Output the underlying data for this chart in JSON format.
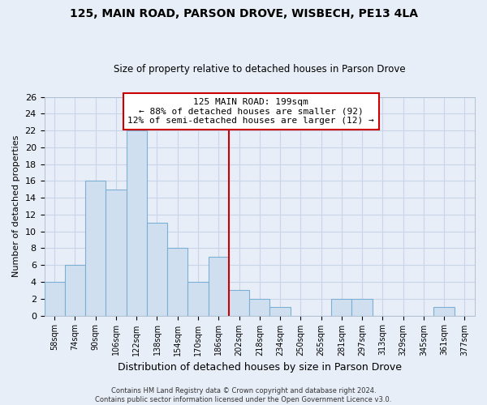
{
  "title": "125, MAIN ROAD, PARSON DROVE, WISBECH, PE13 4LA",
  "subtitle": "Size of property relative to detached houses in Parson Drove",
  "xlabel": "Distribution of detached houses by size in Parson Drove",
  "ylabel": "Number of detached properties",
  "bin_labels": [
    "58sqm",
    "74sqm",
    "90sqm",
    "106sqm",
    "122sqm",
    "138sqm",
    "154sqm",
    "170sqm",
    "186sqm",
    "202sqm",
    "218sqm",
    "234sqm",
    "250sqm",
    "265sqm",
    "281sqm",
    "297sqm",
    "313sqm",
    "329sqm",
    "345sqm",
    "361sqm",
    "377sqm"
  ],
  "bin_values": [
    4,
    6,
    16,
    15,
    22,
    11,
    8,
    4,
    7,
    3,
    2,
    1,
    0,
    0,
    2,
    2,
    0,
    0,
    0,
    1,
    0
  ],
  "bar_color": "#cfdff0",
  "bar_edge_color": "#7bafd4",
  "ylim": [
    0,
    26
  ],
  "yticks": [
    0,
    2,
    4,
    6,
    8,
    10,
    12,
    14,
    16,
    18,
    20,
    22,
    24,
    26
  ],
  "annotation_title": "125 MAIN ROAD: 199sqm",
  "annotation_line1": "← 88% of detached houses are smaller (92)",
  "annotation_line2": "12% of semi-detached houses are larger (12) →",
  "footer_line1": "Contains HM Land Registry data © Crown copyright and database right 2024.",
  "footer_line2": "Contains public sector information licensed under the Open Government Licence v3.0.",
  "bg_color": "#e8eef8",
  "grid_color": "#c8d4e8",
  "ref_line_index": 9
}
